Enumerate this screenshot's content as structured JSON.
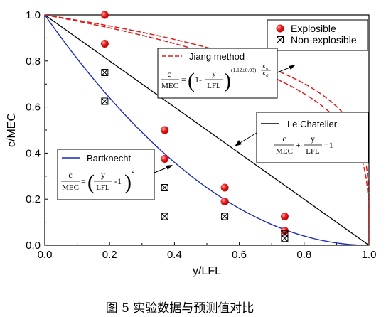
{
  "chart_data": {
    "type": "scatter",
    "xlabel": "y/LFL",
    "ylabel": "c/MEC",
    "xlim": [
      0.0,
      1.0
    ],
    "ylim": [
      0.0,
      1.0
    ],
    "x_ticks": [
      "0.0",
      "0.2",
      "0.4",
      "0.6",
      "0.8",
      "1.0"
    ],
    "y_ticks": [
      "0.0",
      "0.2",
      "0.4",
      "0.6",
      "0.8",
      "1.0"
    ],
    "legend_position": "top-right",
    "grid": false,
    "series": [
      {
        "name": "Explosible",
        "marker": "filled-circle",
        "color": "#e01b1b",
        "points": [
          [
            0.185,
            1.0
          ],
          [
            0.185,
            0.875
          ],
          [
            0.37,
            0.5
          ],
          [
            0.37,
            0.375
          ],
          [
            0.555,
            0.25
          ],
          [
            0.555,
            0.19
          ],
          [
            0.74,
            0.125
          ],
          [
            0.74,
            0.063
          ]
        ]
      },
      {
        "name": "Non-explosible",
        "marker": "boxed-x",
        "color": "#000000",
        "points": [
          [
            0.185,
            0.75
          ],
          [
            0.185,
            0.625
          ],
          [
            0.37,
            0.25
          ],
          [
            0.37,
            0.125
          ],
          [
            0.555,
            0.125
          ],
          [
            0.74,
            0.05
          ],
          [
            0.74,
            0.03
          ]
        ]
      }
    ],
    "curves": [
      {
        "name": "Le Chatelier",
        "style": "solid",
        "color": "#000000",
        "equation": {
          "lhs_num": "c",
          "lhs_den": "MEC",
          "plus": "+",
          "rhs_num": "y",
          "rhs_den": "LFL",
          "eq": "=1"
        }
      },
      {
        "name": "Bartknecht",
        "style": "solid",
        "color": "#1c2bb8",
        "equation": {
          "lhs_num": "c",
          "lhs_den": "MEC",
          "eq": "=",
          "inner_num": "y",
          "inner_den": "LFL",
          "tail": "-1",
          "exponent": "2"
        }
      },
      {
        "name": "Jiang method",
        "style": "dashed-double",
        "color": "#e01b1b",
        "equation": {
          "lhs_num": "c",
          "lhs_den": "MEC",
          "eq": "=",
          "lead": "1-",
          "inner_num": "y",
          "inner_den": "LFL",
          "exponent": "(1.12±0.03)",
          "k_num": "K",
          "k_num_sub": "st",
          "k_den": "K",
          "k_den_sub": "G"
        }
      }
    ],
    "caption": "图 5 实验数据与预测值对比"
  }
}
